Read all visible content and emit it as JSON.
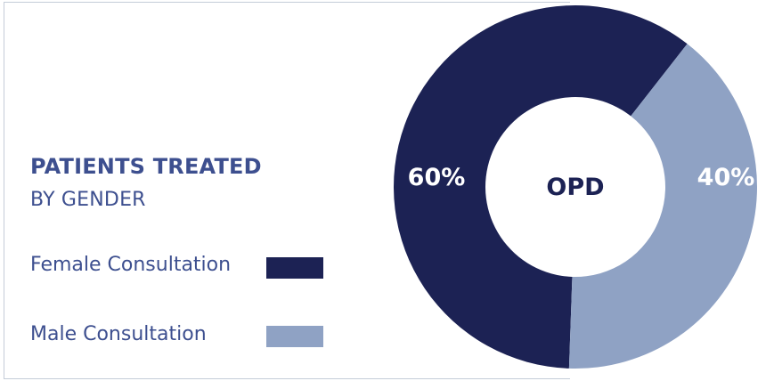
{
  "chart_data": {
    "type": "pie",
    "title": "PATIENTS TREATED",
    "subtitle": "BY GENDER",
    "center_label": "OPD",
    "series": [
      {
        "name": "Female Consultation",
        "value": 60,
        "label": "60%",
        "color": "#1c2254"
      },
      {
        "name": "Male Consultation",
        "value": 40,
        "label": "40%",
        "color": "#8fa2c4"
      }
    ],
    "donut": true,
    "legend_position": "left"
  }
}
